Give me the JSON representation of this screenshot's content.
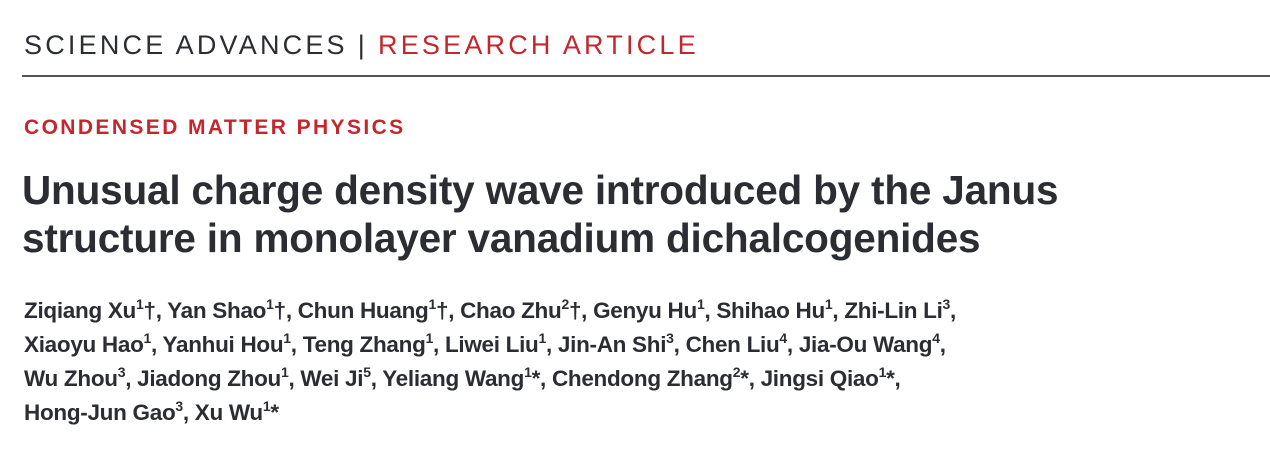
{
  "masthead": {
    "journal": "SCIENCE ADVANCES",
    "separator": "|",
    "article_type": "RESEARCH ARTICLE"
  },
  "section": "CONDENSED MATTER PHYSICS",
  "title": {
    "line1": "Unusual charge density wave introduced by the Janus",
    "line2": "structure in monolayer vanadium dichalcogenides"
  },
  "colors": {
    "accent": "#c4262e",
    "text": "#2b2d33"
  },
  "authors": [
    [
      {
        "name": "Ziqiang Xu",
        "sup": "1",
        "mark": "†"
      },
      {
        "name": "Yan Shao",
        "sup": "1",
        "mark": "†"
      },
      {
        "name": "Chun Huang",
        "sup": "1",
        "mark": "†"
      },
      {
        "name": "Chao Zhu",
        "sup": "2",
        "mark": "†"
      },
      {
        "name": "Genyu Hu",
        "sup": "1",
        "mark": ""
      },
      {
        "name": "Shihao Hu",
        "sup": "1",
        "mark": ""
      },
      {
        "name": "Zhi-Lin Li",
        "sup": "3",
        "mark": ""
      }
    ],
    [
      {
        "name": "Xiaoyu Hao",
        "sup": "1",
        "mark": ""
      },
      {
        "name": "Yanhui Hou",
        "sup": "1",
        "mark": ""
      },
      {
        "name": "Teng Zhang",
        "sup": "1",
        "mark": ""
      },
      {
        "name": "Liwei Liu",
        "sup": "1",
        "mark": ""
      },
      {
        "name": "Jin-An Shi",
        "sup": "3",
        "mark": ""
      },
      {
        "name": "Chen Liu",
        "sup": "4",
        "mark": ""
      },
      {
        "name": "Jia-Ou Wang",
        "sup": "4",
        "mark": ""
      }
    ],
    [
      {
        "name": "Wu Zhou",
        "sup": "3",
        "mark": ""
      },
      {
        "name": "Jiadong Zhou",
        "sup": "1",
        "mark": ""
      },
      {
        "name": "Wei Ji",
        "sup": "5",
        "mark": ""
      },
      {
        "name": "Yeliang Wang",
        "sup": "1",
        "mark": "*"
      },
      {
        "name": "Chendong Zhang",
        "sup": "2",
        "mark": "*"
      },
      {
        "name": "Jingsi Qiao",
        "sup": "1",
        "mark": "*"
      }
    ],
    [
      {
        "name": "Hong-Jun Gao",
        "sup": "3",
        "mark": ""
      },
      {
        "name": "Xu Wu",
        "sup": "1",
        "mark": "*"
      }
    ]
  ]
}
